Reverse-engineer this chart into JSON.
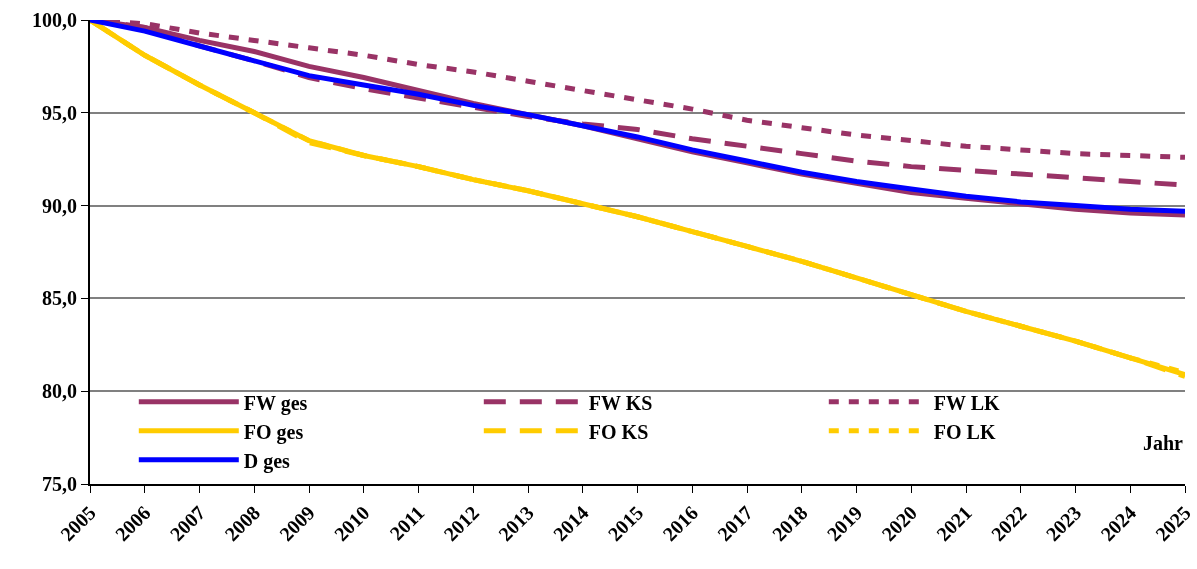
{
  "chart_data": {
    "type": "line",
    "xlabel": "Jahr",
    "x": [
      2005,
      2006,
      2007,
      2008,
      2009,
      2010,
      2011,
      2012,
      2013,
      2014,
      2015,
      2016,
      2017,
      2018,
      2019,
      2020,
      2021,
      2022,
      2023,
      2024,
      2025
    ],
    "xlim": [
      2005,
      2025
    ],
    "xticks": [
      2005,
      2006,
      2007,
      2008,
      2009,
      2010,
      2011,
      2012,
      2013,
      2014,
      2015,
      2016,
      2017,
      2018,
      2019,
      2020,
      2021,
      2022,
      2023,
      2024,
      2025
    ],
    "ylim": [
      75,
      100
    ],
    "yticks": [
      {
        "value": 75,
        "label": "75,0"
      },
      {
        "value": 80,
        "label": "80,0"
      },
      {
        "value": 85,
        "label": "85,0"
      },
      {
        "value": 90,
        "label": "90,0"
      },
      {
        "value": 95,
        "label": "95,0"
      },
      {
        "value": 100,
        "label": "100,0"
      }
    ],
    "grid": "y",
    "legend": "bottom left",
    "marker": "none",
    "series": [
      {
        "name": "FW ges",
        "color": "#993366",
        "line_style": "solid",
        "values": [
          100,
          99.6,
          98.9,
          98.3,
          97.5,
          96.9,
          96.2,
          95.5,
          94.9,
          94.3,
          93.6,
          92.9,
          92.3,
          91.7,
          91.2,
          90.7,
          90.4,
          90.1,
          89.8,
          89.6,
          89.5
        ]
      },
      {
        "name": "FW KS",
        "color": "#993366",
        "line_style": "dashed",
        "values": [
          100,
          99.6,
          98.6,
          97.8,
          96.9,
          96.3,
          95.8,
          95.3,
          94.8,
          94.4,
          94.1,
          93.6,
          93.2,
          92.8,
          92.4,
          92.1,
          91.9,
          91.7,
          91.5,
          91.3,
          91.1
        ]
      },
      {
        "name": "FW LK",
        "color": "#993366",
        "line_style": "dotted",
        "values": [
          100,
          99.8,
          99.3,
          98.9,
          98.5,
          98.1,
          97.6,
          97.2,
          96.7,
          96.2,
          95.7,
          95.2,
          94.6,
          94.2,
          93.8,
          93.5,
          93.2,
          93.0,
          92.8,
          92.7,
          92.6
        ]
      },
      {
        "name": "FO ges",
        "color": "#ffcc00",
        "line_style": "solid",
        "values": [
          100,
          98.1,
          96.5,
          95.0,
          93.5,
          92.7,
          92.1,
          91.4,
          90.8,
          90.1,
          89.4,
          88.6,
          87.8,
          87.0,
          86.1,
          85.2,
          84.3,
          83.5,
          82.7,
          81.8,
          80.9
        ]
      },
      {
        "name": "FO KS",
        "color": "#ffcc00",
        "line_style": "dashed",
        "values": [
          100,
          98.1,
          96.5,
          95.0,
          93.4,
          92.7,
          92.1,
          91.4,
          90.8,
          90.1,
          89.4,
          88.6,
          87.8,
          87.0,
          86.1,
          85.2,
          84.3,
          83.5,
          82.7,
          81.8,
          80.8
        ]
      },
      {
        "name": "FO LK",
        "color": "#ffcc00",
        "line_style": "dotted",
        "values": [
          100,
          98.1,
          96.5,
          95.0,
          93.5,
          92.7,
          92.1,
          91.4,
          90.8,
          90.1,
          89.4,
          88.6,
          87.8,
          87.0,
          86.1,
          85.2,
          84.3,
          83.5,
          82.7,
          81.8,
          81.0
        ]
      },
      {
        "name": "D ges",
        "color": "#0000ff",
        "line_style": "solid",
        "values": [
          100,
          99.4,
          98.6,
          97.8,
          97.0,
          96.5,
          96.0,
          95.4,
          94.9,
          94.3,
          93.7,
          93.0,
          92.4,
          91.8,
          91.3,
          90.9,
          90.5,
          90.2,
          90.0,
          89.8,
          89.7
        ]
      }
    ]
  }
}
